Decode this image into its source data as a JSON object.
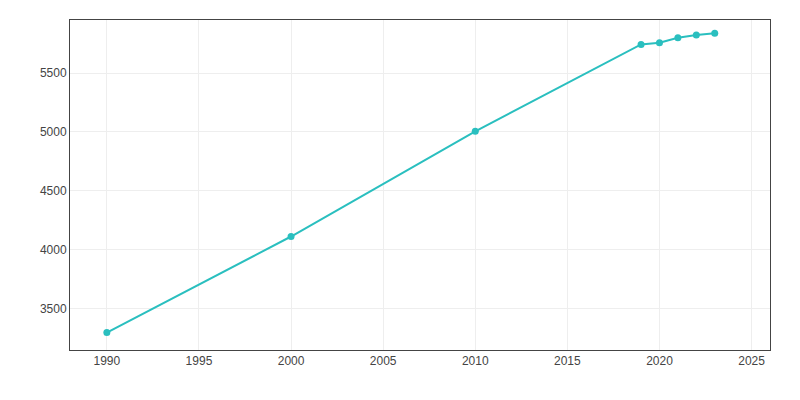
{
  "chart_data": {
    "type": "line",
    "x": [
      1990,
      2000,
      2010,
      2019,
      2020,
      2021,
      2022,
      2023
    ],
    "values": [
      3298,
      4113,
      5006,
      5743,
      5757,
      5800,
      5822,
      5838
    ],
    "color": "#2abfbf",
    "marker": "circle",
    "xlim": [
      1988,
      2026
    ],
    "ylim": [
      3150,
      5950
    ],
    "xticks": [
      1990,
      1995,
      2000,
      2005,
      2010,
      2015,
      2020,
      2025
    ],
    "yticks": [
      3500,
      4000,
      4500,
      5000,
      5500
    ],
    "grid": true
  }
}
